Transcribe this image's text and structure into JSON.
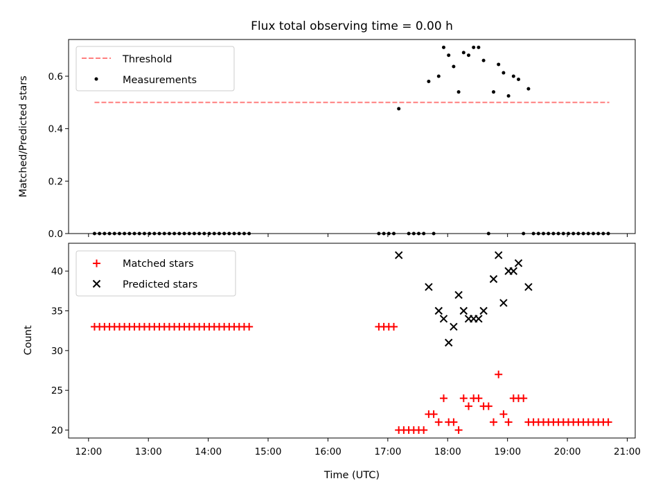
{
  "title": "Flux total observing time = 0.00 h",
  "chart_data": [
    {
      "type": "scatter",
      "ylabel": "Matched/Predicted stars",
      "ylim": [
        0,
        0.74
      ],
      "yticks": [
        0.0,
        0.2,
        0.4,
        0.6
      ],
      "ytick_labels": [
        "0.0",
        "0.2",
        "0.4",
        "0.6"
      ],
      "legend_position": "top-left",
      "threshold": {
        "name": "Threshold",
        "value": 0.5,
        "x_range": [
          "12:06",
          "20:42"
        ],
        "color": "#ff7f7f"
      },
      "series": [
        {
          "name": "Measurements",
          "color": "#000000",
          "marker": "dot",
          "points": [
            [
              "12:06",
              0
            ],
            [
              "12:11",
              0
            ],
            [
              "12:16",
              0
            ],
            [
              "12:21",
              0
            ],
            [
              "12:26",
              0
            ],
            [
              "12:31",
              0
            ],
            [
              "12:36",
              0
            ],
            [
              "12:41",
              0
            ],
            [
              "12:46",
              0
            ],
            [
              "12:51",
              0
            ],
            [
              "12:56",
              0
            ],
            [
              "13:01",
              0
            ],
            [
              "13:06",
              0
            ],
            [
              "13:11",
              0
            ],
            [
              "13:16",
              0
            ],
            [
              "13:21",
              0
            ],
            [
              "13:26",
              0
            ],
            [
              "13:31",
              0
            ],
            [
              "13:36",
              0
            ],
            [
              "13:41",
              0
            ],
            [
              "13:46",
              0
            ],
            [
              "13:51",
              0
            ],
            [
              "13:56",
              0
            ],
            [
              "14:01",
              0
            ],
            [
              "14:06",
              0
            ],
            [
              "14:11",
              0
            ],
            [
              "14:16",
              0
            ],
            [
              "14:21",
              0
            ],
            [
              "14:26",
              0
            ],
            [
              "14:31",
              0
            ],
            [
              "14:36",
              0
            ],
            [
              "14:41",
              0
            ],
            [
              "16:51",
              0
            ],
            [
              "16:56",
              0
            ],
            [
              "17:01",
              0
            ],
            [
              "17:06",
              0
            ],
            [
              "17:11",
              0.476
            ],
            [
              "17:21",
              0
            ],
            [
              "17:26",
              0
            ],
            [
              "17:31",
              0
            ],
            [
              "17:36",
              0
            ],
            [
              "17:41",
              0.58
            ],
            [
              "17:46",
              0
            ],
            [
              "17:51",
              0.6
            ],
            [
              "17:56",
              0.71
            ],
            [
              "18:01",
              0.68
            ],
            [
              "18:06",
              0.637
            ],
            [
              "18:11",
              0.54
            ],
            [
              "18:16",
              0.69
            ],
            [
              "18:21",
              0.68
            ],
            [
              "18:26",
              0.71
            ],
            [
              "18:31",
              0.71
            ],
            [
              "18:36",
              0.66
            ],
            [
              "18:41",
              0
            ],
            [
              "18:46",
              0.54
            ],
            [
              "18:51",
              0.645
            ],
            [
              "18:56",
              0.613
            ],
            [
              "19:01",
              0.525
            ],
            [
              "19:06",
              0.6
            ],
            [
              "19:11",
              0.588
            ],
            [
              "19:16",
              0
            ],
            [
              "19:21",
              0.552
            ],
            [
              "19:26",
              0
            ],
            [
              "19:31",
              0
            ],
            [
              "19:36",
              0
            ],
            [
              "19:41",
              0
            ],
            [
              "19:46",
              0
            ],
            [
              "19:51",
              0
            ],
            [
              "19:56",
              0
            ],
            [
              "20:01",
              0
            ],
            [
              "20:06",
              0
            ],
            [
              "20:11",
              0
            ],
            [
              "20:16",
              0
            ],
            [
              "20:21",
              0
            ],
            [
              "20:26",
              0
            ],
            [
              "20:31",
              0
            ],
            [
              "20:36",
              0
            ],
            [
              "20:41",
              0
            ]
          ]
        }
      ]
    },
    {
      "type": "scatter",
      "xlabel": "Time (UTC)",
      "ylabel": "Count",
      "ylim": [
        19,
        43.5
      ],
      "yticks": [
        20,
        25,
        30,
        35,
        40
      ],
      "ytick_labels": [
        "20",
        "25",
        "30",
        "35",
        "40"
      ],
      "xlim": [
        "11:40",
        "21:08"
      ],
      "xticks": [
        "12:00",
        "13:00",
        "14:00",
        "15:00",
        "16:00",
        "17:00",
        "18:00",
        "19:00",
        "20:00",
        "21:00"
      ],
      "xtick_labels": [
        "12:00",
        "13:00",
        "14:00",
        "15:00",
        "16:00",
        "17:00",
        "18:00",
        "19:00",
        "20:00",
        "21:00"
      ],
      "legend_position": "top-left",
      "series": [
        {
          "name": "Matched stars",
          "color": "#ff0000",
          "marker": "plus",
          "points": [
            [
              "12:06",
              33
            ],
            [
              "12:11",
              33
            ],
            [
              "12:16",
              33
            ],
            [
              "12:21",
              33
            ],
            [
              "12:26",
              33
            ],
            [
              "12:31",
              33
            ],
            [
              "12:36",
              33
            ],
            [
              "12:41",
              33
            ],
            [
              "12:46",
              33
            ],
            [
              "12:51",
              33
            ],
            [
              "12:56",
              33
            ],
            [
              "13:01",
              33
            ],
            [
              "13:06",
              33
            ],
            [
              "13:11",
              33
            ],
            [
              "13:16",
              33
            ],
            [
              "13:21",
              33
            ],
            [
              "13:26",
              33
            ],
            [
              "13:31",
              33
            ],
            [
              "13:36",
              33
            ],
            [
              "13:41",
              33
            ],
            [
              "13:46",
              33
            ],
            [
              "13:51",
              33
            ],
            [
              "13:56",
              33
            ],
            [
              "14:01",
              33
            ],
            [
              "14:06",
              33
            ],
            [
              "14:11",
              33
            ],
            [
              "14:16",
              33
            ],
            [
              "14:21",
              33
            ],
            [
              "14:26",
              33
            ],
            [
              "14:31",
              33
            ],
            [
              "14:36",
              33
            ],
            [
              "14:41",
              33
            ],
            [
              "16:51",
              33
            ],
            [
              "16:56",
              33
            ],
            [
              "17:01",
              33
            ],
            [
              "17:06",
              33
            ],
            [
              "17:11",
              20
            ],
            [
              "17:16",
              20
            ],
            [
              "17:21",
              20
            ],
            [
              "17:26",
              20
            ],
            [
              "17:31",
              20
            ],
            [
              "17:36",
              20
            ],
            [
              "17:41",
              22
            ],
            [
              "17:46",
              22
            ],
            [
              "17:51",
              21
            ],
            [
              "17:56",
              24
            ],
            [
              "18:01",
              21
            ],
            [
              "18:06",
              21
            ],
            [
              "18:11",
              20
            ],
            [
              "18:16",
              24
            ],
            [
              "18:21",
              23
            ],
            [
              "18:26",
              24
            ],
            [
              "18:31",
              24
            ],
            [
              "18:36",
              23
            ],
            [
              "18:41",
              23
            ],
            [
              "18:46",
              21
            ],
            [
              "18:51",
              27
            ],
            [
              "18:56",
              22
            ],
            [
              "19:01",
              21
            ],
            [
              "19:06",
              24
            ],
            [
              "19:11",
              24
            ],
            [
              "19:16",
              24
            ],
            [
              "19:21",
              21
            ],
            [
              "19:26",
              21
            ],
            [
              "19:31",
              21
            ],
            [
              "19:36",
              21
            ],
            [
              "19:41",
              21
            ],
            [
              "19:46",
              21
            ],
            [
              "19:51",
              21
            ],
            [
              "19:56",
              21
            ],
            [
              "20:01",
              21
            ],
            [
              "20:06",
              21
            ],
            [
              "20:11",
              21
            ],
            [
              "20:16",
              21
            ],
            [
              "20:21",
              21
            ],
            [
              "20:26",
              21
            ],
            [
              "20:31",
              21
            ],
            [
              "20:36",
              21
            ],
            [
              "20:41",
              21
            ]
          ]
        },
        {
          "name": "Predicted stars",
          "color": "#000000",
          "marker": "x",
          "points": [
            [
              "17:11",
              42
            ],
            [
              "17:41",
              38
            ],
            [
              "17:51",
              35
            ],
            [
              "17:56",
              34
            ],
            [
              "18:01",
              31
            ],
            [
              "18:06",
              33
            ],
            [
              "18:11",
              37
            ],
            [
              "18:16",
              35
            ],
            [
              "18:21",
              34
            ],
            [
              "18:26",
              34
            ],
            [
              "18:31",
              34
            ],
            [
              "18:36",
              35
            ],
            [
              "18:46",
              39
            ],
            [
              "18:51",
              42
            ],
            [
              "18:56",
              36
            ],
            [
              "19:01",
              40
            ],
            [
              "19:06",
              40
            ],
            [
              "19:11",
              41
            ],
            [
              "19:21",
              38
            ]
          ]
        }
      ]
    }
  ]
}
